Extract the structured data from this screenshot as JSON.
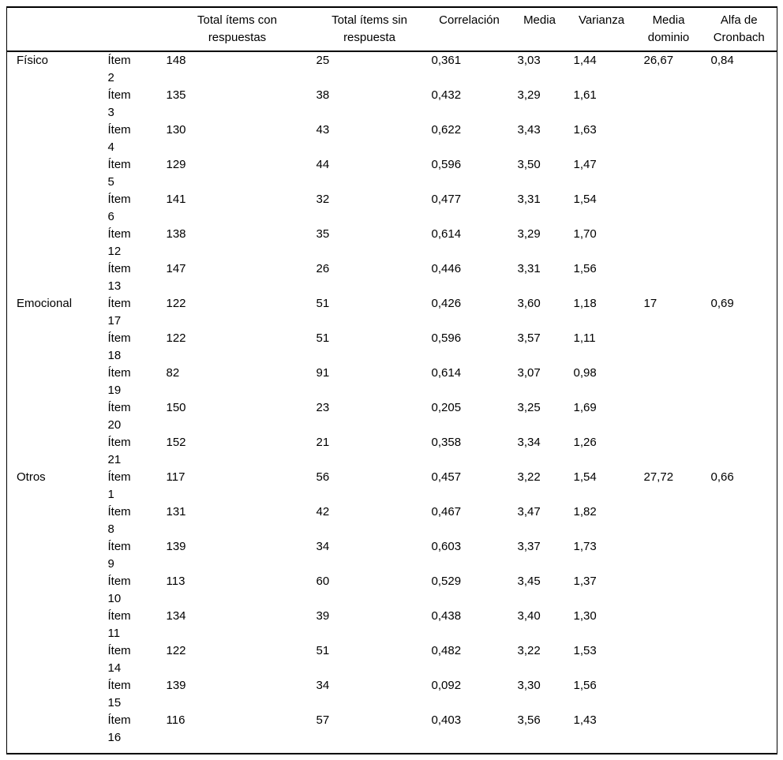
{
  "table": {
    "headers": {
      "domain": "",
      "item": "",
      "total_con": "Total ítems con respuestas",
      "total_sin": "Total ítems sin respuesta",
      "correlacion": "Correlación",
      "media": "Media",
      "varianza": "Varianza",
      "media_dominio": "Media dominio",
      "alfa_cronbach": "Alfa de Cronbach"
    },
    "groups": [
      {
        "domain": "Físico",
        "media_dominio": "26,67",
        "alfa_cronbach": "0,84",
        "items": [
          {
            "item": "Ítem",
            "num": "2",
            "con": "148",
            "sin": "25",
            "corr": "0,361",
            "media": "3,03",
            "varianza": "1,44"
          },
          {
            "item": "Ítem",
            "num": "3",
            "con": "135",
            "sin": "38",
            "corr": "0,432",
            "media": "3,29",
            "varianza": "1,61"
          },
          {
            "item": "Ítem",
            "num": "4",
            "con": "130",
            "sin": "43",
            "corr": "0,622",
            "media": "3,43",
            "varianza": "1,63"
          },
          {
            "item": "Ítem",
            "num": "5",
            "con": "129",
            "sin": "44",
            "corr": "0,596",
            "media": "3,50",
            "varianza": "1,47"
          },
          {
            "item": "Ítem",
            "num": "6",
            "con": "141",
            "sin": "32",
            "corr": "0,477",
            "media": "3,31",
            "varianza": "1,54"
          },
          {
            "item": "Ítem",
            "num": "12",
            "con": "138",
            "sin": "35",
            "corr": "0,614",
            "media": "3,29",
            "varianza": "1,70"
          },
          {
            "item": "Ítem",
            "num": "13",
            "con": "147",
            "sin": "26",
            "corr": "0,446",
            "media": "3,31",
            "varianza": "1,56"
          }
        ]
      },
      {
        "domain": "Emocional",
        "media_dominio": "17",
        "alfa_cronbach": "0,69",
        "items": [
          {
            "item": "Ítem",
            "num": "17",
            "con": "122",
            "sin": "51",
            "corr": "0,426",
            "media": "3,60",
            "varianza": "1,18"
          },
          {
            "item": "Ítem",
            "num": "18",
            "con": "122",
            "sin": "51",
            "corr": "0,596",
            "media": "3,57",
            "varianza": "1,11"
          },
          {
            "item": "Ítem",
            "num": "19",
            "con": "82",
            "sin": "91",
            "corr": "0,614",
            "media": "3,07",
            "varianza": "0,98"
          },
          {
            "item": "Ítem",
            "num": "20",
            "con": "150",
            "sin": "23",
            "corr": "0,205",
            "media": "3,25",
            "varianza": "1,69"
          },
          {
            "item": "Ítem",
            "num": "21",
            "con": "152",
            "sin": "21",
            "corr": "0,358",
            "media": "3,34",
            "varianza": "1,26"
          }
        ]
      },
      {
        "domain": "Otros",
        "media_dominio": "27,72",
        "alfa_cronbach": "0,66",
        "items": [
          {
            "item": "Ítem",
            "num": "1",
            "con": "117",
            "sin": "56",
            "corr": "0,457",
            "media": "3,22",
            "varianza": "1,54"
          },
          {
            "item": "Ítem",
            "num": "8",
            "con": "131",
            "sin": "42",
            "corr": "0,467",
            "media": "3,47",
            "varianza": "1,82"
          },
          {
            "item": "Ítem",
            "num": "9",
            "con": "139",
            "sin": "34",
            "corr": "0,603",
            "media": "3,37",
            "varianza": "1,73"
          },
          {
            "item": "Ítem",
            "num": "10",
            "con": "113",
            "sin": "60",
            "corr": "0,529",
            "media": "3,45",
            "varianza": "1,37"
          },
          {
            "item": "Ítem",
            "num": "11",
            "con": "134",
            "sin": "39",
            "corr": "0,438",
            "media": "3,40",
            "varianza": "1,30"
          },
          {
            "item": "Ítem",
            "num": "14",
            "con": "122",
            "sin": "51",
            "corr": "0,482",
            "media": "3,22",
            "varianza": "1,53"
          },
          {
            "item": "Ítem",
            "num": "15",
            "con": "139",
            "sin": "34",
            "corr": "0,092",
            "media": "3,30",
            "varianza": "1,56"
          },
          {
            "item": "Ítem",
            "num": "16",
            "con": "116",
            "sin": "57",
            "corr": "0,403",
            "media": "3,56",
            "varianza": "1,43"
          }
        ]
      }
    ]
  }
}
